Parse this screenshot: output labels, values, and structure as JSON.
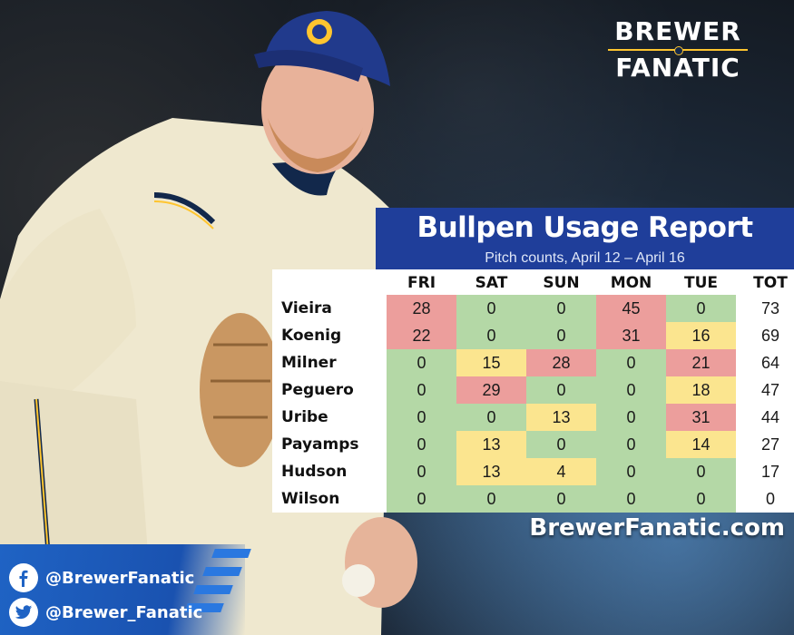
{
  "brand": {
    "line1": "BREWER",
    "line2": "FANATIC"
  },
  "report": {
    "title": "Bullpen Usage Report",
    "subtitle": "Pitch counts, April 12 – April 16"
  },
  "table": {
    "columns": [
      "FRI",
      "SAT",
      "SUN",
      "MON",
      "TUE",
      "TOT"
    ],
    "rows": [
      {
        "name": "Vieira",
        "values": [
          "28",
          "0",
          "0",
          "45",
          "0"
        ],
        "total": "73",
        "colors": [
          "r",
          "g",
          "g",
          "r",
          "g"
        ]
      },
      {
        "name": "Koenig",
        "values": [
          "22",
          "0",
          "0",
          "31",
          "16"
        ],
        "total": "69",
        "colors": [
          "r",
          "g",
          "g",
          "r",
          "y"
        ]
      },
      {
        "name": "Milner",
        "values": [
          "0",
          "15",
          "28",
          "0",
          "21"
        ],
        "total": "64",
        "colors": [
          "g",
          "y",
          "r",
          "g",
          "r"
        ]
      },
      {
        "name": "Peguero",
        "values": [
          "0",
          "29",
          "0",
          "0",
          "18"
        ],
        "total": "47",
        "colors": [
          "g",
          "r",
          "g",
          "g",
          "y"
        ]
      },
      {
        "name": "Uribe",
        "values": [
          "0",
          "0",
          "13",
          "0",
          "31"
        ],
        "total": "44",
        "colors": [
          "g",
          "g",
          "y",
          "g",
          "r"
        ]
      },
      {
        "name": "Payamps",
        "values": [
          "0",
          "13",
          "0",
          "0",
          "14"
        ],
        "total": "27",
        "colors": [
          "g",
          "y",
          "g",
          "g",
          "y"
        ]
      },
      {
        "name": "Hudson",
        "values": [
          "0",
          "13",
          "4",
          "0",
          "0"
        ],
        "total": "17",
        "colors": [
          "g",
          "y",
          "y",
          "g",
          "g"
        ]
      },
      {
        "name": "Wilson",
        "values": [
          "0",
          "0",
          "0",
          "0",
          "0"
        ],
        "total": "0",
        "colors": [
          "g",
          "g",
          "g",
          "g",
          "g"
        ]
      }
    ]
  },
  "site": "BrewerFanatic.com",
  "social": [
    {
      "icon": "facebook-icon",
      "handle": "@BrewerFanatic"
    },
    {
      "icon": "twitter-icon",
      "handle": "@Brewer_Fanatic"
    }
  ],
  "colors": {
    "header": "#1f3e9a",
    "green": "#b4d8a6",
    "yellow": "#fbe58f",
    "red": "#ec9e9c",
    "gold": "#ffc52f"
  }
}
